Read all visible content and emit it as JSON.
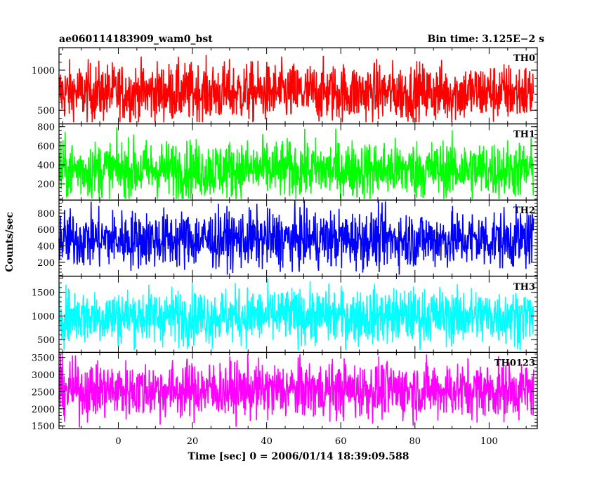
{
  "header": {
    "title": "ae060114183909_wam0_bst",
    "bin_time": "Bin time: 3.125E−2 s"
  },
  "chart_data": {
    "type": "line",
    "xlabel": "Time [sec] 0 = 2006/01/14 18:39:09.588",
    "ylabel": "Counts/sec",
    "xlim": [
      -16,
      113
    ],
    "x_ticks": [
      0,
      20,
      40,
      60,
      80,
      100
    ],
    "x_tick_labels": [
      "0",
      "20",
      "40",
      "60",
      "80",
      "100"
    ],
    "data_x_range": [
      -16,
      112
    ],
    "panels": [
      {
        "name": "TH0",
        "color": "#ff0000",
        "ylim": [
          330,
          1280
        ],
        "y_ticks": [
          500,
          1000
        ],
        "y_tick_labels": [
          "500",
          "1000"
        ],
        "mean": 720,
        "range": [
          350,
          1300
        ]
      },
      {
        "name": "TH1",
        "color": "#00ff00",
        "ylim": [
          30,
          830
        ],
        "y_ticks": [
          200,
          400,
          600,
          800
        ],
        "y_tick_labels": [
          "200",
          "400",
          "600",
          "800"
        ],
        "mean": 350,
        "range": [
          40,
          830
        ]
      },
      {
        "name": "TH2",
        "color": "#0000ff",
        "ylim": [
          30,
          960
        ],
        "y_ticks": [
          200,
          400,
          600,
          800
        ],
        "y_tick_labels": [
          "200",
          "400",
          "600",
          "800"
        ],
        "mean": 480,
        "range": [
          50,
          960
        ]
      },
      {
        "name": "TH3",
        "color": "#00ffff",
        "ylim": [
          230,
          1840
        ],
        "y_ticks": [
          500,
          1000,
          1500
        ],
        "y_tick_labels": [
          "500",
          "1000",
          "1500"
        ],
        "mean": 1000,
        "range": [
          280,
          1800
        ]
      },
      {
        "name": "TH0123",
        "color": "#ff00ff",
        "ylim": [
          1420,
          3650
        ],
        "y_ticks": [
          1500,
          2000,
          2500,
          3000,
          3500
        ],
        "y_tick_labels": [
          "1500",
          "2000",
          "2500",
          "3000",
          "3500"
        ],
        "mean": 2550,
        "range": [
          1450,
          3600
        ]
      }
    ]
  }
}
